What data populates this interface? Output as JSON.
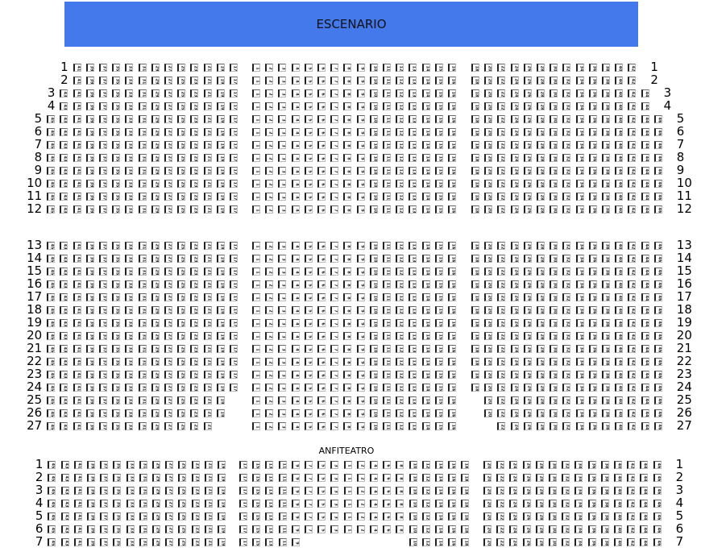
{
  "stage_label": "ESCENARIO",
  "anfiteatro_label": "ANFITEATRO",
  "platea": [
    {
      "label": "1",
      "left": [
        41,
        17
      ],
      "center": [
        1,
        16
      ],
      "right": [
        18,
        42
      ]
    },
    {
      "label": "2",
      "left": [
        41,
        17
      ],
      "center": [
        1,
        16
      ],
      "right": [
        18,
        42
      ]
    },
    {
      "label": "3",
      "left": [
        43,
        17
      ],
      "center": [
        1,
        16
      ],
      "right": [
        18,
        44
      ]
    },
    {
      "label": "4",
      "left": [
        43,
        17
      ],
      "center": [
        1,
        16
      ],
      "right": [
        18,
        44
      ]
    },
    {
      "label": "5",
      "left": [
        45,
        17
      ],
      "center": [
        1,
        16
      ],
      "right": [
        18,
        46
      ]
    },
    {
      "label": "6",
      "left": [
        45,
        17
      ],
      "center": [
        1,
        16
      ],
      "right": [
        18,
        46
      ]
    },
    {
      "label": "7",
      "left": [
        45,
        17
      ],
      "center": [
        1,
        16
      ],
      "right": [
        18,
        46
      ]
    },
    {
      "label": "8",
      "left": [
        45,
        17
      ],
      "center": [
        1,
        16
      ],
      "right": [
        18,
        46
      ]
    },
    {
      "label": "9",
      "left": [
        45,
        17
      ],
      "center": [
        1,
        16
      ],
      "right": [
        18,
        46
      ]
    },
    {
      "label": "10",
      "left": [
        45,
        17
      ],
      "center": [
        1,
        16
      ],
      "right": [
        18,
        46
      ]
    },
    {
      "label": "11",
      "left": [
        45,
        17
      ],
      "center": [
        1,
        16
      ],
      "right": [
        18,
        46
      ]
    },
    {
      "label": "12",
      "left": [
        45,
        17
      ],
      "center": [
        1,
        16
      ],
      "right": [
        18,
        46
      ]
    },
    {
      "label": "13",
      "left": [
        45,
        17
      ],
      "center": [
        1,
        16
      ],
      "right": [
        18,
        46
      ]
    },
    {
      "label": "14",
      "left": [
        45,
        17
      ],
      "center": [
        1,
        16
      ],
      "right": [
        18,
        46
      ]
    },
    {
      "label": "15",
      "left": [
        45,
        17
      ],
      "center": [
        1,
        16
      ],
      "right": [
        18,
        46
      ]
    },
    {
      "label": "16",
      "left": [
        45,
        17
      ],
      "center": [
        1,
        16
      ],
      "right": [
        18,
        46
      ]
    },
    {
      "label": "17",
      "left": [
        45,
        17
      ],
      "center": [
        1,
        16
      ],
      "right": [
        18,
        46
      ]
    },
    {
      "label": "18",
      "left": [
        45,
        17
      ],
      "center": [
        1,
        16
      ],
      "right": [
        18,
        46
      ]
    },
    {
      "label": "19",
      "left": [
        45,
        17
      ],
      "center": [
        1,
        16
      ],
      "right": [
        18,
        46
      ]
    },
    {
      "label": "20",
      "left": [
        45,
        17
      ],
      "center": [
        1,
        16
      ],
      "right": [
        18,
        46
      ]
    },
    {
      "label": "21",
      "left": [
        45,
        17
      ],
      "center": [
        1,
        16
      ],
      "right": [
        18,
        46
      ]
    },
    {
      "label": "22",
      "left": [
        45,
        17
      ],
      "center": [
        1,
        16
      ],
      "right": [
        18,
        46
      ]
    },
    {
      "label": "23",
      "left": [
        45,
        17
      ],
      "center": [
        1,
        16
      ],
      "right": [
        18,
        46
      ]
    },
    {
      "label": "24",
      "left": [
        45,
        17
      ],
      "center": [
        1,
        16
      ],
      "right": [
        18,
        46
      ]
    },
    {
      "label": "25",
      "left": [
        45,
        19
      ],
      "center": [
        1,
        16
      ],
      "right": [
        20,
        46
      ]
    },
    {
      "label": "26",
      "left": [
        45,
        19
      ],
      "center": [
        1,
        16
      ],
      "right": [
        20,
        46
      ]
    },
    {
      "label": "27",
      "left": [
        45,
        21
      ],
      "center": [
        1,
        16
      ],
      "right": [
        22,
        46
      ]
    }
  ],
  "anfiteatro": [
    {
      "label": "1",
      "left": [
        45,
        19
      ],
      "center": [
        17,
        15,
        13,
        11,
        9,
        7,
        5,
        3,
        1,
        2,
        4,
        6,
        8,
        10,
        12,
        14,
        16,
        18
      ],
      "right": [
        20,
        46
      ]
    },
    {
      "label": "2",
      "left": [
        45,
        19
      ],
      "center": [
        17,
        15,
        13,
        11,
        9,
        7,
        5,
        3,
        1,
        2,
        4,
        6,
        8,
        10,
        12,
        14,
        16,
        18
      ],
      "right": [
        20,
        46
      ]
    },
    {
      "label": "3",
      "left": [
        45,
        19
      ],
      "center": [
        17,
        15,
        13,
        11,
        9,
        7,
        5,
        3,
        1,
        2,
        4,
        6,
        8,
        10,
        12,
        14,
        16,
        18
      ],
      "right": [
        20,
        46
      ]
    },
    {
      "label": "4",
      "left": [
        45,
        19
      ],
      "center": [
        17,
        15,
        13,
        11,
        9,
        7,
        5,
        3,
        1,
        2,
        4,
        6,
        8,
        10,
        12,
        14,
        16,
        18
      ],
      "right": [
        20,
        46
      ]
    },
    {
      "label": "5",
      "left": [
        45,
        19
      ],
      "center": [
        17,
        15,
        13,
        11,
        9,
        7,
        5,
        3,
        1,
        2,
        4,
        6,
        8,
        10,
        12,
        14,
        16,
        18
      ],
      "right": [
        20,
        46
      ]
    },
    {
      "label": "6",
      "left": [
        45,
        19
      ],
      "center": [
        17,
        15,
        13,
        11,
        9,
        7,
        5,
        3,
        1,
        2,
        4,
        6,
        8,
        10,
        12,
        14,
        16,
        18
      ],
      "right": [
        20,
        46
      ]
    },
    {
      "label": "7",
      "left": [
        45,
        19
      ],
      "center": [
        17,
        15,
        13,
        11,
        9,
        null,
        null,
        null,
        null,
        null,
        null,
        null,
        null,
        10,
        12,
        14,
        16,
        18
      ],
      "right": [
        20,
        46
      ]
    }
  ]
}
